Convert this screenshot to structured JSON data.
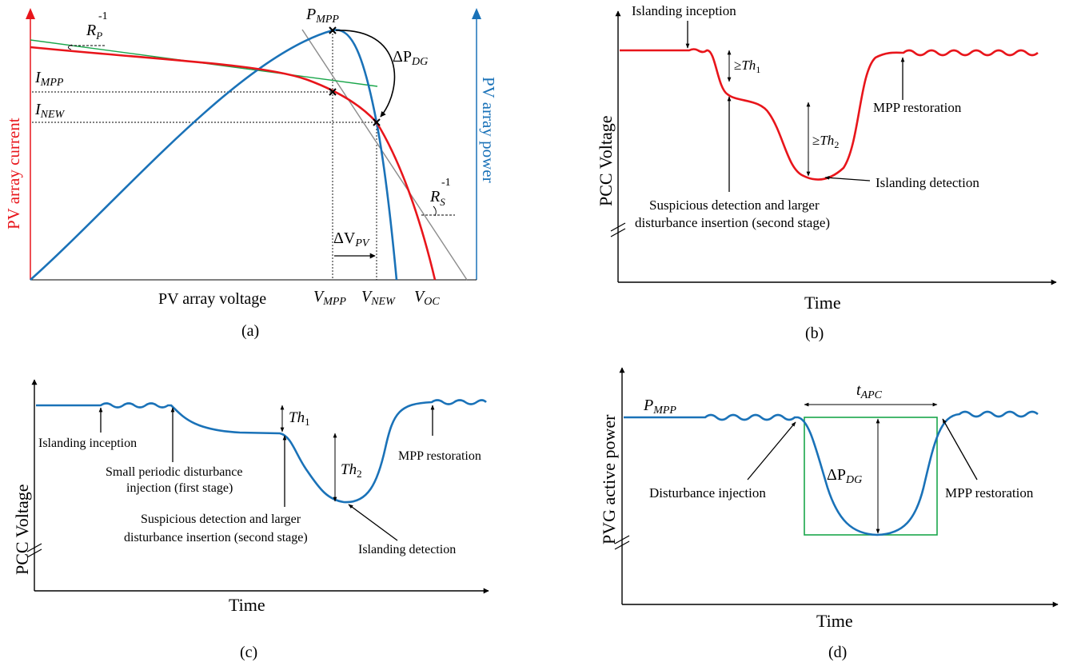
{
  "colors": {
    "red": "#e8151b",
    "blue": "#1a72b8",
    "green": "#1aa64b",
    "gray": "#8c8c8c",
    "black": "#000000"
  },
  "panel_a": {
    "caption": "(a)",
    "xlabel": "PV array voltage",
    "ylabel_left": "PV array current",
    "ylabel_right": "PV array power",
    "labels": {
      "p_mpp": {
        "main": "P",
        "sub": "MPP"
      },
      "delta_p_dg": {
        "main": "ΔP",
        "sub": "DG"
      },
      "i_mpp": {
        "main": "I",
        "sub": "MPP"
      },
      "i_new": {
        "main": "I",
        "sub": "NEW"
      },
      "r_p": {
        "main": "R",
        "sub": "P",
        "sup": "-1"
      },
      "r_s": {
        "main": "R",
        "sub": "S",
        "sup": "-1"
      },
      "delta_v_pv": {
        "main": "ΔV",
        "sub": "PV"
      },
      "v_mpp": {
        "main": "V",
        "sub": "MPP"
      },
      "v_new": {
        "main": "V",
        "sub": "NEW"
      },
      "v_oc": {
        "main": "V",
        "sub": "OC"
      }
    }
  },
  "panel_b": {
    "caption": "(b)",
    "xlabel": "Time",
    "ylabel": "PCC Voltage",
    "annotations": {
      "inception": "Islanding inception",
      "th1": {
        "prefix": "≥",
        "main": "Th",
        "sub": "1"
      },
      "th2": {
        "prefix": "≥",
        "main": "Th",
        "sub": "2"
      },
      "mpp_restoration": "MPP restoration",
      "islanding_detection": "Islanding detection",
      "suspicious_line1": "Suspicious detection and larger",
      "suspicious_line2": "disturbance insertion (second stage)"
    }
  },
  "panel_c": {
    "caption": "(c)",
    "xlabel": "Time",
    "ylabel": "PCC Voltage",
    "annotations": {
      "inception": "Islanding inception",
      "small_line1": "Small periodic disturbance",
      "small_line2": "injection (first stage)",
      "th1": {
        "main": "Th",
        "sub": "1"
      },
      "th2": {
        "main": "Th",
        "sub": "2"
      },
      "mpp_restoration": "MPP restoration",
      "suspicious_line1": "Suspicious detection and larger",
      "suspicious_line2": "disturbance insertion (second stage)",
      "islanding_detection": "Islanding detection"
    }
  },
  "panel_d": {
    "caption": "(d)",
    "xlabel": "Time",
    "ylabel": "PVG active power",
    "annotations": {
      "p_mpp": {
        "main": "P",
        "sub": "MPP"
      },
      "t_apc": {
        "main": "t",
        "sub": "APC"
      },
      "delta_p_dg": {
        "main": "ΔP",
        "sub": "DG"
      },
      "disturbance_injection": "Disturbance injection",
      "mpp_restoration": "MPP restoration"
    }
  }
}
